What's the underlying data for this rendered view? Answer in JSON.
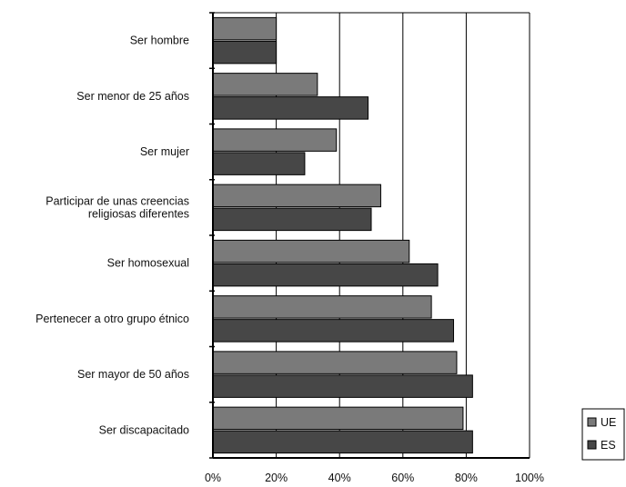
{
  "chart_data": {
    "type": "bar",
    "orientation": "horizontal",
    "categories": [
      [
        "Ser hombre"
      ],
      [
        "Ser menor de 25 años"
      ],
      [
        "Ser mujer"
      ],
      [
        "Participar de unas creencias",
        "religiosas diferentes"
      ],
      [
        "Ser homosexual"
      ],
      [
        "Pertenecer a otro grupo étnico"
      ],
      [
        "Ser mayor de 50 años"
      ],
      [
        "Ser discapacitado"
      ]
    ],
    "series": [
      {
        "name": "UE",
        "color": "#7a7a7a",
        "values": [
          20,
          33,
          39,
          53,
          62,
          69,
          77,
          79
        ]
      },
      {
        "name": "ES",
        "color": "#474747",
        "values": [
          20,
          49,
          29,
          50,
          71,
          76,
          82,
          82
        ]
      }
    ],
    "xlim": [
      0,
      100
    ],
    "ticks": [
      "0%",
      "20%",
      "40%",
      "60%",
      "80%",
      "100%"
    ],
    "grid": true,
    "legend_position": "bottom-right"
  }
}
